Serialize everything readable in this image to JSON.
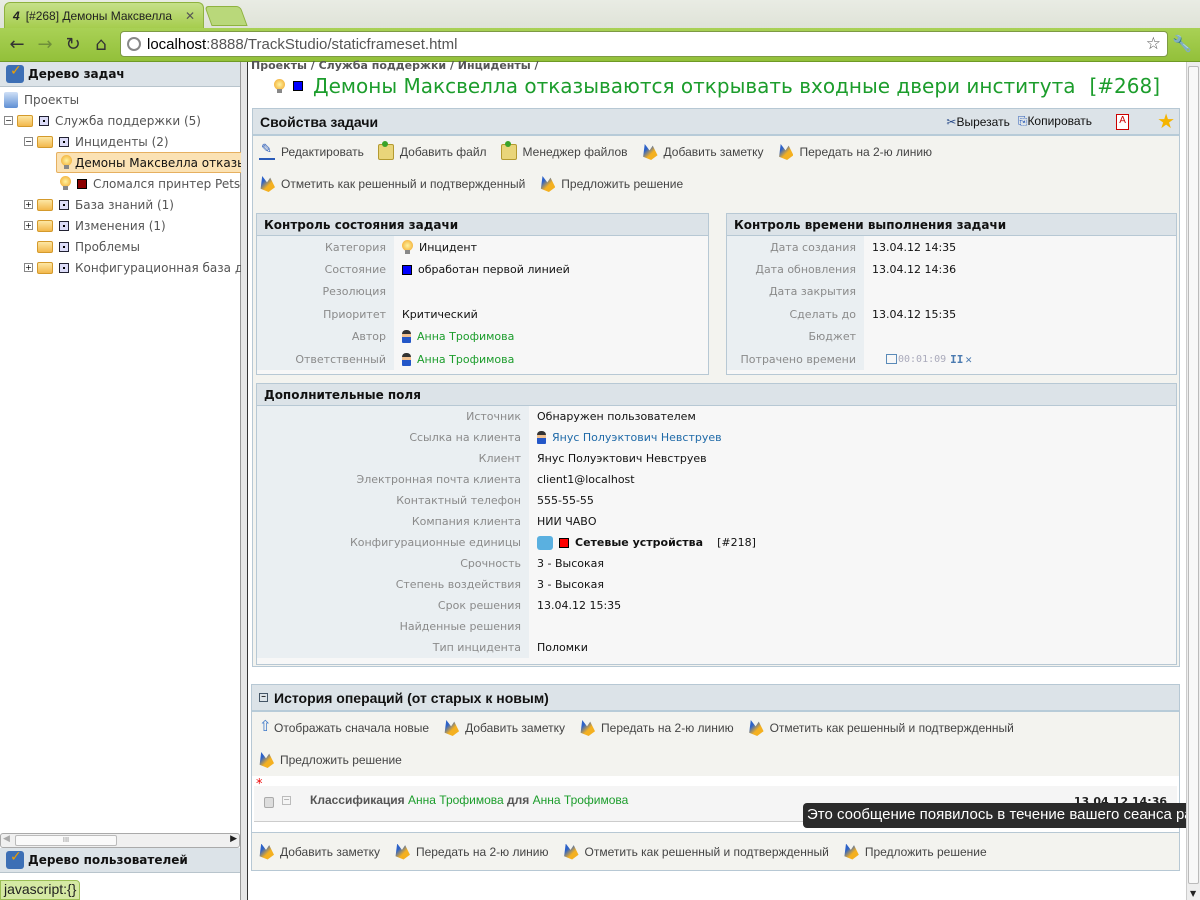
{
  "browser": {
    "tab_title": "[#268] Демоны Максвелла",
    "tab_logo": "4",
    "address_host": "localhost",
    "address_rest": ":8888/TrackStudio/staticframeset.html"
  },
  "sidebar": {
    "title": "Дерево задач",
    "tree": [
      {
        "label": "Проекты"
      },
      {
        "label": "Служба поддержки (5)"
      },
      {
        "label": "Инциденты (2)"
      },
      {
        "label": "Демоны Максвелла отказываются открывать входные двери института",
        "state_color": "#0000ff"
      },
      {
        "label": "Сломался принтер Petsonic",
        "state_color": "#8b0000"
      },
      {
        "label": "База знаний (1)"
      },
      {
        "label": "Изменения (1)"
      },
      {
        "label": "Проблемы"
      },
      {
        "label": "Конфигурационная база данных"
      }
    ],
    "users_title": "Дерево пользователей",
    "status_bubble": "javascript:{}"
  },
  "main": {
    "breadcrumb": "Проекты / Служба поддержки / Инциденты /",
    "task_title": "Демоны Максвелла отказываются открывать входные двери института",
    "task_number": "[#268]",
    "state_color": "#0000ff",
    "title_color": "#1c9d2c",
    "properties": {
      "title": "Свойства задачи",
      "cut_label": "Вырезать",
      "copy_label": "Копировать",
      "actions": [
        "Редактировать",
        "Добавить файл",
        "Менеджер файлов",
        "Добавить заметку",
        "Передать на 2-ю линию",
        "Отметить как решенный и подтвержденный",
        "Предложить решение"
      ]
    },
    "state_control": {
      "title": "Контроль состояния задачи",
      "rows": [
        {
          "label": "Категория",
          "value": "Инцидент"
        },
        {
          "label": "Состояние",
          "value": "обработан первой линией"
        },
        {
          "label": "Резолюция",
          "value": ""
        },
        {
          "label": "Приоритет",
          "value": "Критический"
        },
        {
          "label": "Автор",
          "value": "Анна Трофимова"
        },
        {
          "label": "Ответственный",
          "value": "Анна Трофимова"
        }
      ]
    },
    "time_control": {
      "title": "Контроль времени выполнения задачи",
      "rows": [
        {
          "label": "Дата создания",
          "value": "13.04.12 14:35"
        },
        {
          "label": "Дата обновления",
          "value": "13.04.12 14:36"
        },
        {
          "label": "Дата закрытия",
          "value": ""
        },
        {
          "label": "Сделать до",
          "value": "13.04.12 15:35"
        },
        {
          "label": "Бюджет",
          "value": ""
        },
        {
          "label": "Потрачено времени",
          "value": "00:01:09"
        }
      ]
    },
    "extra_fields": {
      "title": "Дополнительные поля",
      "rows": [
        {
          "label": "Источник",
          "value": "Обнаружен пользователем"
        },
        {
          "label": "Ссылка на клиента",
          "value": "Янус Полуэктович Невструев"
        },
        {
          "label": "Клиент",
          "value": "Янус Полуэктович Невструев"
        },
        {
          "label": "Электронная почта клиента",
          "value": "client1@localhost"
        },
        {
          "label": "Контактный телефон",
          "value": "555-55-55"
        },
        {
          "label": "Компания клиента",
          "value": "НИИ ЧАВО"
        },
        {
          "label": "Конфигурационные единицы",
          "value": "Сетевые устройства",
          "ref": "[#218]",
          "state_color": "#ff0000"
        },
        {
          "label": "Срочность",
          "value": "3 - Высокая"
        },
        {
          "label": "Степень воздействия",
          "value": "3 - Высокая"
        },
        {
          "label": "Срок решения",
          "value": "13.04.12 15:35"
        },
        {
          "label": "Найденные решения",
          "value": ""
        },
        {
          "label": "Тип инцидента",
          "value": "Поломки"
        }
      ]
    },
    "history": {
      "title": "История операций (от старых к новым)",
      "actions": [
        "Отображать сначала новые",
        "Добавить заметку",
        "Передать на 2-ю линию",
        "Отметить как решенный и подтвержденный",
        "Предложить решение"
      ],
      "entry": {
        "marker": "*",
        "type": "Классификация",
        "author": "Анна Трофимова",
        "for_word": "для",
        "target": "Анна Трофимова",
        "date": "13.04.12 14:36"
      },
      "bottom_actions": [
        "Добавить заметку",
        "Передать на 2-ю линию",
        "Отметить как решенный и подтвержденный",
        "Предложить решение"
      ]
    },
    "tooltip": "Это сообщение появилось в течение вашего сеанса работы"
  }
}
